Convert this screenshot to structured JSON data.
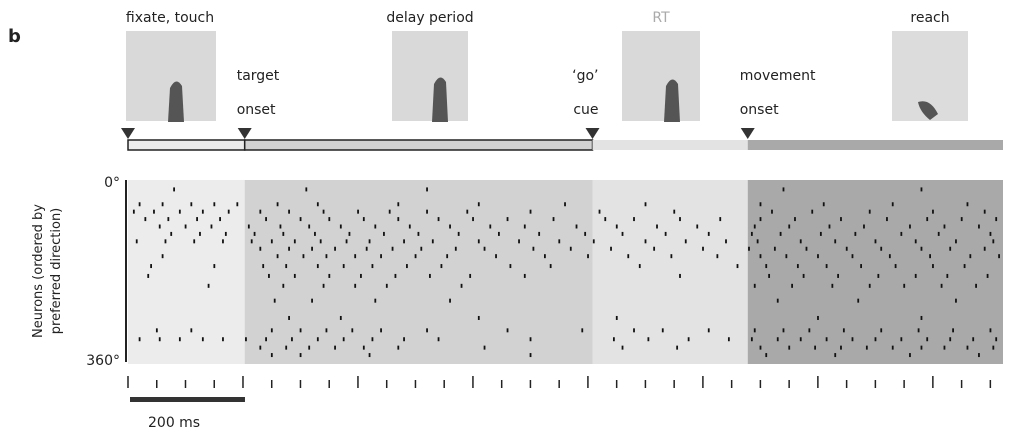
{
  "chart_data": {
    "type": "raster",
    "panel_label": "b",
    "epochs": [
      {
        "label": "fixate, touch",
        "start": 0,
        "end": 203,
        "color": "#ececec"
      },
      {
        "label": "delay period",
        "start": 203,
        "end": 808,
        "color": "#d2d2d2",
        "onset_lines": [
          "target",
          "onset"
        ]
      },
      {
        "label": "RT",
        "start": 808,
        "end": 1078,
        "color": "#e3e3e3",
        "onset_lines": [
          "‘go’",
          "cue"
        ]
      },
      {
        "label": "reach",
        "start": 1078,
        "end": 1522,
        "color": "#a9a9a9",
        "onset_lines": [
          "movement",
          "onset"
        ]
      }
    ],
    "ylabel_lines": [
      "Neurons (ordered by",
      "preferred direction)"
    ],
    "xlim": [
      0,
      1522
    ],
    "ylim": [
      0,
      360
    ],
    "yticks": [
      {
        "value": 0,
        "label": "0°"
      },
      {
        "value": 360,
        "label": "360°"
      }
    ],
    "xticks": [
      0,
      50,
      100,
      150,
      200,
      250,
      300,
      350,
      400,
      450,
      500,
      550,
      600,
      650,
      700,
      750,
      800,
      850,
      900,
      950,
      1000,
      1050,
      1100,
      1150,
      1200,
      1250,
      1300,
      1350,
      1400,
      1450,
      1500
    ],
    "scale_bar": {
      "length": 200,
      "label": "200 ms"
    },
    "spikes": [
      {
        "direction": 15,
        "times": [
          80,
          310,
          520,
          1140,
          1380
        ]
      },
      {
        "direction": 45,
        "times": [
          20,
          60,
          110,
          150,
          190,
          260,
          330,
          470,
          610,
          760,
          900,
          1100,
          1210,
          1330,
          1460
        ]
      },
      {
        "direction": 60,
        "times": [
          10,
          45,
          90,
          130,
          175,
          230,
          280,
          340,
          400,
          455,
          520,
          590,
          700,
          820,
          950,
          1120,
          1190,
          1290,
          1400,
          1490
        ]
      },
      {
        "direction": 75,
        "times": [
          30,
          70,
          120,
          160,
          240,
          300,
          350,
          410,
          470,
          540,
          600,
          660,
          740,
          830,
          880,
          960,
          1030,
          1100,
          1160,
          1240,
          1320,
          1390,
          1450,
          1510
        ]
      },
      {
        "direction": 90,
        "times": [
          55,
          100,
          145,
          210,
          265,
          315,
          370,
          430,
          490,
          560,
          630,
          690,
          780,
          850,
          920,
          990,
          1090,
          1150,
          1220,
          1280,
          1360,
          1420,
          1480
        ]
      },
      {
        "direction": 105,
        "times": [
          75,
          125,
          170,
          220,
          270,
          325,
          385,
          445,
          505,
          575,
          645,
          715,
          795,
          860,
          935,
          1010,
          1085,
          1135,
          1205,
          1265,
          1345,
          1410,
          1500
        ]
      },
      {
        "direction": 120,
        "times": [
          15,
          65,
          115,
          165,
          215,
          250,
          290,
          335,
          380,
          420,
          480,
          530,
          610,
          680,
          750,
          810,
          900,
          970,
          1040,
          1095,
          1170,
          1230,
          1300,
          1370,
          1440,
          1505
        ]
      },
      {
        "direction": 135,
        "times": [
          230,
          280,
          320,
          360,
          415,
          460,
          510,
          570,
          620,
          705,
          770,
          840,
          915,
          1000,
          1080,
          1125,
          1180,
          1250,
          1310,
          1380,
          1430,
          1490
        ]
      },
      {
        "direction": 150,
        "times": [
          60,
          260,
          305,
          345,
          395,
          440,
          500,
          555,
          640,
          725,
          800,
          870,
          945,
          1025,
          1100,
          1145,
          1200,
          1260,
          1325,
          1395,
          1465,
          1515
        ]
      },
      {
        "direction": 170,
        "times": [
          40,
          150,
          235,
          275,
          330,
          375,
          425,
          485,
          545,
          665,
          735,
          890,
          1060,
          1110,
          1165,
          1215,
          1275,
          1335,
          1400,
          1455
        ]
      },
      {
        "direction": 190,
        "times": [
          35,
          245,
          290,
          350,
          405,
          465,
          525,
          595,
          690,
          960,
          1115,
          1175,
          1235,
          1305,
          1370,
          1425,
          1495
        ]
      },
      {
        "direction": 210,
        "times": [
          140,
          270,
          340,
          395,
          450,
          580,
          1090,
          1155,
          1225,
          1290,
          1350,
          1415,
          1475
        ]
      },
      {
        "direction": 240,
        "times": [
          255,
          320,
          430,
          560,
          1130,
          1270,
          1440
        ]
      },
      {
        "direction": 275,
        "times": [
          280,
          370,
          610,
          850,
          1200,
          1380
        ]
      },
      {
        "direction": 300,
        "times": [
          50,
          110,
          250,
          300,
          345,
          390,
          440,
          520,
          660,
          790,
          880,
          930,
          1010,
          1090,
          1140,
          1185,
          1245,
          1310,
          1375,
          1435,
          1500
        ]
      },
      {
        "direction": 318,
        "times": [
          20,
          55,
          90,
          130,
          165,
          205,
          240,
          285,
          330,
          375,
          425,
          480,
          540,
          700,
          845,
          905,
          975,
          1045,
          1085,
          1130,
          1170,
          1215,
          1260,
          1300,
          1345,
          1390,
          1430,
          1470,
          1510
        ]
      },
      {
        "direction": 335,
        "times": [
          230,
          275,
          315,
          360,
          410,
          470,
          620,
          860,
          955,
          1100,
          1150,
          1195,
          1240,
          1285,
          1330,
          1380,
          1420,
          1460,
          1505
        ]
      },
      {
        "direction": 350,
        "times": [
          250,
          300,
          420,
          700,
          1110,
          1230,
          1360,
          1480
        ]
      }
    ]
  }
}
